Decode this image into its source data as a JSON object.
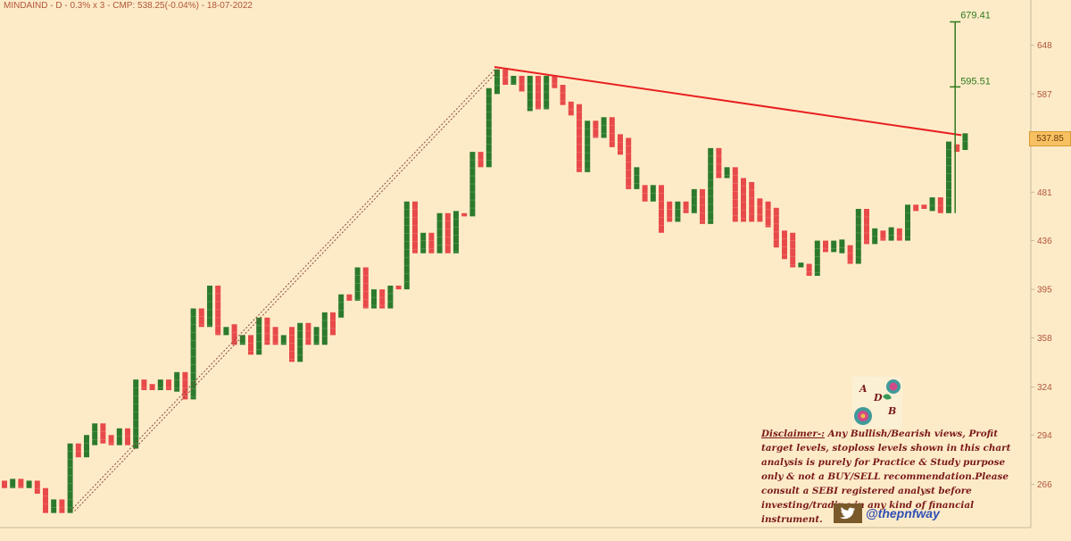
{
  "header": {
    "title": "MINDAIND - D - 0.3% x 3 - CMP: 538.25(-0.04%) - 18-07-2022"
  },
  "price_tag": "537.85",
  "disclaimer": {
    "lead": "Disclaimer-:",
    "body": " Any Bullish/Bearish views, Profit target levels, stoploss levels shown in this chart analysis is purely  for Practice & Study purpose only & not a BUY/SELL recommendation.Please consult a SEBI  registered analyst before investing/trading in any kind of financial instrument."
  },
  "logo": {
    "letters": [
      "A",
      "D",
      "B"
    ]
  },
  "social": {
    "icon": "twitter-bird-icon",
    "handle": "@thepnfway"
  },
  "colors": {
    "up": "#2c7a2c",
    "down": "#e84a4a",
    "trendline": "#e82020",
    "target": "#2f7a1f",
    "background": "#fdebc8"
  },
  "chart_data": {
    "type": "bar",
    "title": "MINDAIND - D - 0.3% x 3 - CMP: 538.25(-0.04%) - 18-07-2022",
    "y_axis": {
      "ticks": [
        266,
        294,
        324,
        358,
        395,
        436,
        481,
        587,
        648
      ],
      "scale": "log",
      "ylim": [
        245,
        700
      ],
      "position": "right"
    },
    "grid": false,
    "bricks": [
      {
        "dir": "down",
        "open": 268,
        "close": 264
      },
      {
        "dir": "up",
        "open": 264,
        "close": 269
      },
      {
        "dir": "down",
        "open": 269,
        "close": 264
      },
      {
        "dir": "up",
        "open": 264,
        "close": 268
      },
      {
        "dir": "down",
        "open": 268,
        "close": 261
      },
      {
        "dir": "down",
        "open": 264,
        "close": 251
      },
      {
        "dir": "up",
        "open": 251,
        "close": 258
      },
      {
        "dir": "down",
        "open": 258,
        "close": 251
      },
      {
        "dir": "up",
        "open": 251,
        "close": 289
      },
      {
        "dir": "down",
        "open": 289,
        "close": 281
      },
      {
        "dir": "up",
        "open": 281,
        "close": 294
      },
      {
        "dir": "up",
        "open": 288,
        "close": 301
      },
      {
        "dir": "down",
        "open": 301,
        "close": 289
      },
      {
        "dir": "down",
        "open": 294,
        "close": 288
      },
      {
        "dir": "up",
        "open": 288,
        "close": 298
      },
      {
        "dir": "down",
        "open": 298,
        "close": 288
      },
      {
        "dir": "up",
        "open": 286,
        "close": 329
      },
      {
        "dir": "down",
        "open": 329,
        "close": 322
      },
      {
        "dir": "down",
        "open": 326,
        "close": 322
      },
      {
        "dir": "up",
        "open": 322,
        "close": 329
      },
      {
        "dir": "down",
        "open": 329,
        "close": 322
      },
      {
        "dir": "up",
        "open": 321,
        "close": 334
      },
      {
        "dir": "down",
        "open": 334,
        "close": 316
      },
      {
        "dir": "up",
        "open": 316,
        "close": 380
      },
      {
        "dir": "down",
        "open": 380,
        "close": 366
      },
      {
        "dir": "up",
        "open": 366,
        "close": 398
      },
      {
        "dir": "down",
        "open": 398,
        "close": 360
      },
      {
        "dir": "up",
        "open": 360,
        "close": 366
      },
      {
        "dir": "down",
        "open": 368,
        "close": 353
      },
      {
        "dir": "up",
        "open": 353,
        "close": 360
      },
      {
        "dir": "down",
        "open": 360,
        "close": 346
      },
      {
        "dir": "up",
        "open": 346,
        "close": 373
      },
      {
        "dir": "down",
        "open": 373,
        "close": 353
      },
      {
        "dir": "down",
        "open": 366,
        "close": 353
      },
      {
        "dir": "up",
        "open": 353,
        "close": 360
      },
      {
        "dir": "down",
        "open": 366,
        "close": 341
      },
      {
        "dir": "up",
        "open": 341,
        "close": 369
      },
      {
        "dir": "down",
        "open": 369,
        "close": 353
      },
      {
        "dir": "up",
        "open": 353,
        "close": 366
      },
      {
        "dir": "up",
        "open": 353,
        "close": 377
      },
      {
        "dir": "down",
        "open": 377,
        "close": 360
      },
      {
        "dir": "up",
        "open": 373,
        "close": 391
      },
      {
        "dir": "down",
        "open": 391,
        "close": 386
      },
      {
        "dir": "up",
        "open": 386,
        "close": 413
      },
      {
        "dir": "down",
        "open": 413,
        "close": 380
      },
      {
        "dir": "up",
        "open": 380,
        "close": 395
      },
      {
        "dir": "down",
        "open": 395,
        "close": 380
      },
      {
        "dir": "up",
        "open": 380,
        "close": 398
      },
      {
        "dir": "down",
        "open": 398,
        "close": 395
      },
      {
        "dir": "up",
        "open": 395,
        "close": 472
      },
      {
        "dir": "down",
        "open": 472,
        "close": 425
      },
      {
        "dir": "up",
        "open": 425,
        "close": 443
      },
      {
        "dir": "down",
        "open": 443,
        "close": 425
      },
      {
        "dir": "up",
        "open": 425,
        "close": 461
      },
      {
        "dir": "down",
        "open": 461,
        "close": 425
      },
      {
        "dir": "up",
        "open": 425,
        "close": 463
      },
      {
        "dir": "down",
        "open": 461,
        "close": 458
      },
      {
        "dir": "up",
        "open": 458,
        "close": 522
      },
      {
        "dir": "down",
        "open": 522,
        "close": 506
      },
      {
        "dir": "up",
        "open": 506,
        "close": 594
      },
      {
        "dir": "up",
        "open": 587,
        "close": 617
      },
      {
        "dir": "down",
        "open": 617,
        "close": 598
      },
      {
        "dir": "up",
        "open": 598,
        "close": 609
      },
      {
        "dir": "down",
        "open": 609,
        "close": 590
      },
      {
        "dir": "up",
        "open": 567,
        "close": 609
      },
      {
        "dir": "down",
        "open": 609,
        "close": 569
      },
      {
        "dir": "up",
        "open": 569,
        "close": 609
      },
      {
        "dir": "down",
        "open": 609,
        "close": 594
      },
      {
        "dir": "down",
        "open": 598,
        "close": 574
      },
      {
        "dir": "down",
        "open": 578,
        "close": 562
      },
      {
        "dir": "down",
        "open": 575,
        "close": 501
      },
      {
        "dir": "up",
        "open": 501,
        "close": 556
      },
      {
        "dir": "down",
        "open": 556,
        "close": 537
      },
      {
        "dir": "up",
        "open": 537,
        "close": 560
      },
      {
        "dir": "down",
        "open": 560,
        "close": 527
      },
      {
        "dir": "down",
        "open": 541,
        "close": 519
      },
      {
        "dir": "down",
        "open": 537,
        "close": 484
      },
      {
        "dir": "up",
        "open": 484,
        "close": 506
      },
      {
        "dir": "down",
        "open": 488,
        "close": 472
      },
      {
        "dir": "up",
        "open": 472,
        "close": 488
      },
      {
        "dir": "down",
        "open": 488,
        "close": 443
      },
      {
        "dir": "down",
        "open": 472,
        "close": 453
      },
      {
        "dir": "up",
        "open": 453,
        "close": 472
      },
      {
        "dir": "down",
        "open": 472,
        "close": 461
      },
      {
        "dir": "up",
        "open": 461,
        "close": 484
      },
      {
        "dir": "down",
        "open": 484,
        "close": 451
      },
      {
        "dir": "up",
        "open": 451,
        "close": 526
      },
      {
        "dir": "down",
        "open": 526,
        "close": 495
      },
      {
        "dir": "up",
        "open": 495,
        "close": 506
      },
      {
        "dir": "down",
        "open": 506,
        "close": 453
      },
      {
        "dir": "down",
        "open": 495,
        "close": 453
      },
      {
        "dir": "down",
        "open": 491,
        "close": 453
      },
      {
        "dir": "down",
        "open": 475,
        "close": 453
      },
      {
        "dir": "down",
        "open": 472,
        "close": 448
      },
      {
        "dir": "down",
        "open": 466,
        "close": 430
      },
      {
        "dir": "down",
        "open": 445,
        "close": 420
      },
      {
        "dir": "down",
        "open": 443,
        "close": 413
      },
      {
        "dir": "up",
        "open": 413,
        "close": 417
      },
      {
        "dir": "down",
        "open": 416,
        "close": 406
      },
      {
        "dir": "up",
        "open": 406,
        "close": 436
      },
      {
        "dir": "down",
        "open": 436,
        "close": 426
      },
      {
        "dir": "up",
        "open": 426,
        "close": 436
      },
      {
        "dir": "up",
        "open": 425,
        "close": 437
      },
      {
        "dir": "down",
        "open": 432,
        "close": 416
      },
      {
        "dir": "up",
        "open": 416,
        "close": 465
      },
      {
        "dir": "down",
        "open": 465,
        "close": 433
      },
      {
        "dir": "up",
        "open": 433,
        "close": 447
      },
      {
        "dir": "down",
        "open": 445,
        "close": 436
      },
      {
        "dir": "up",
        "open": 436,
        "close": 448
      },
      {
        "dir": "down",
        "open": 447,
        "close": 436
      },
      {
        "dir": "up",
        "open": 436,
        "close": 469
      },
      {
        "dir": "down",
        "open": 469,
        "close": 463
      },
      {
        "dir": "down",
        "open": 469,
        "close": 465
      },
      {
        "dir": "up",
        "open": 463,
        "close": 476
      },
      {
        "dir": "down",
        "open": 476,
        "close": 461
      },
      {
        "dir": "up",
        "open": 461,
        "close": 533
      },
      {
        "dir": "down",
        "open": 530,
        "close": 522
      },
      {
        "dir": "up",
        "open": 524,
        "close": 542
      }
    ],
    "trendline": {
      "from_brick": 60,
      "from": 620,
      "to_brick": 116,
      "to": 540
    },
    "projection": {
      "from_brick": 8,
      "from": 252,
      "to_brick": 60,
      "to": 620
    },
    "target": {
      "brick": 116,
      "base": 461,
      "mid": 595.51,
      "high": 679.41,
      "labels": [
        "679.41",
        "595.51"
      ]
    }
  }
}
